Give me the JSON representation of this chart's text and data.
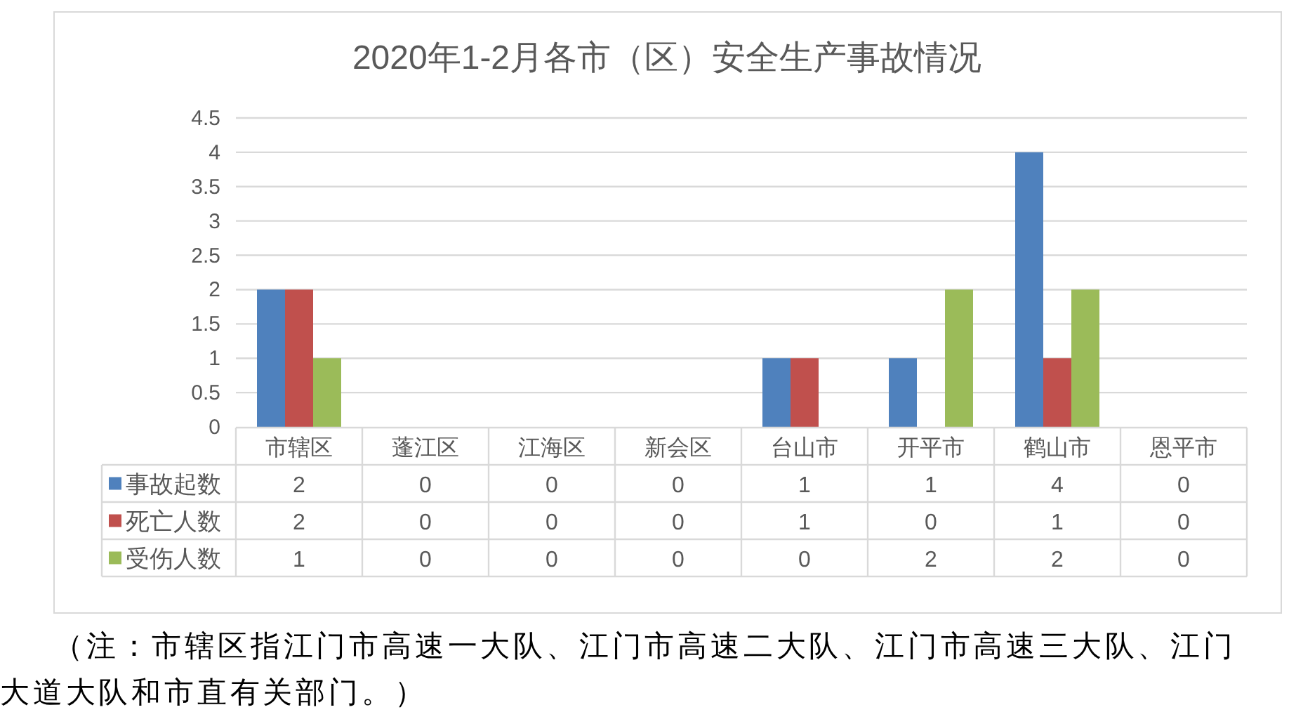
{
  "chart_data": {
    "type": "bar",
    "title": "2020年1-2月各市（区）安全生产事故情况",
    "categories": [
      "市辖区",
      "蓬江区",
      "江海区",
      "新会区",
      "台山市",
      "开平市",
      "鹤山市",
      "恩平市"
    ],
    "series": [
      {
        "name": "事故起数",
        "color": "#4f81bd",
        "values": [
          2,
          0,
          0,
          0,
          1,
          1,
          4,
          0
        ]
      },
      {
        "name": "死亡人数",
        "color": "#c0504d",
        "values": [
          2,
          0,
          0,
          0,
          1,
          0,
          1,
          0
        ]
      },
      {
        "name": "受伤人数",
        "color": "#9bbb59",
        "values": [
          1,
          0,
          0,
          0,
          0,
          2,
          2,
          0
        ]
      }
    ],
    "ylim": [
      0,
      4.5
    ],
    "yticks": [
      0,
      0.5,
      1,
      1.5,
      2,
      2.5,
      3,
      3.5,
      4,
      4.5
    ],
    "grid": "y",
    "legend": "bottom",
    "data_labels": true,
    "annotations": [
      "（注：市辖区指江门市高速一大队、江门市高速二大队、江门市高速三大队、江门大道大队和市直有关部门。）"
    ]
  }
}
